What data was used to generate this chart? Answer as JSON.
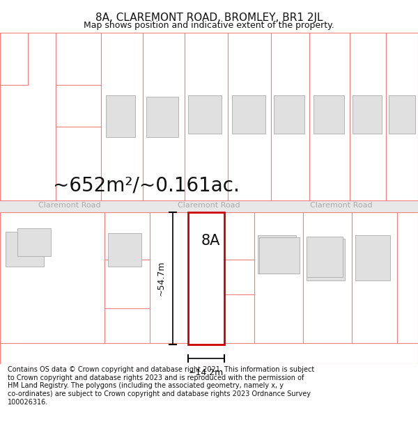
{
  "title": "8A, CLAREMONT ROAD, BROMLEY, BR1 2JL",
  "subtitle": "Map shows position and indicative extent of the property.",
  "area_text": "~652m²/~0.161ac.",
  "road_label": "Claremont Road",
  "property_label": "8A",
  "dim_height": "~54.7m",
  "dim_width": "~14.2m",
  "disclaimer": "Contains OS data © Crown copyright and database right 2021. This information is subject\nto Crown copyright and database rights 2023 and is reproduced with the permission of\nHM Land Registry. The polygons (including the associated geometry, namely x, y\nco-ordinates) are subject to Crown copyright and database rights 2023 Ordnance Survey\n100026316.",
  "bg_color": "#ffffff",
  "parcel_line_color": "#f08080",
  "building_fill": "#e0e0e0",
  "building_edge": "#aaaaaa",
  "road_fill": "#e8e8e8",
  "road_line_color": "#aaaaaa",
  "highlight_color": "#cc0000",
  "text_color": "#111111",
  "road_text_color": "#aaaaaa",
  "title_fontsize": 11,
  "subtitle_fontsize": 9,
  "area_fontsize": 20,
  "label_fontsize": 16,
  "road_label_fontsize": 8,
  "disclaimer_fontsize": 7.0
}
